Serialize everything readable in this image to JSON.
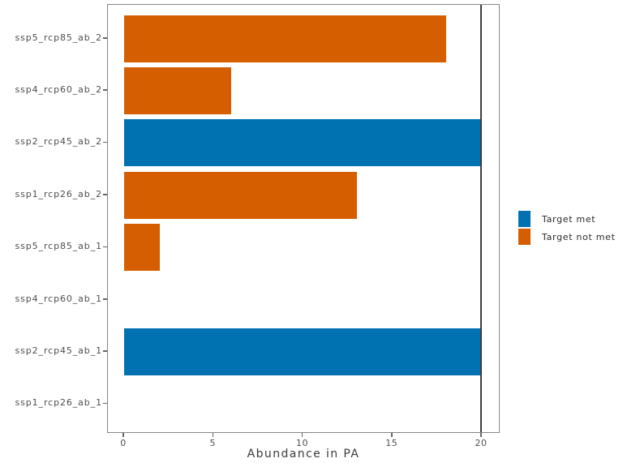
{
  "chart_data": {
    "type": "bar",
    "orientation": "horizontal",
    "title": "",
    "xlabel": "Abundance in PA",
    "ylabel": "",
    "xlim": [
      0,
      20
    ],
    "xticks": [
      0,
      5,
      10,
      15,
      20
    ],
    "grid": false,
    "reference_line_x": 20,
    "categories": [
      "ssp5_rcp85_ab_2",
      "ssp4_rcp60_ab_2",
      "ssp2_rcp45_ab_2",
      "ssp1_rcp26_ab_2",
      "ssp5_rcp85_ab_1",
      "ssp4_rcp60_ab_1",
      "ssp2_rcp45_ab_1",
      "ssp1_rcp26_ab_1"
    ],
    "values": [
      18,
      6,
      20,
      13,
      2,
      0,
      20,
      0
    ],
    "statuses": [
      "not_met",
      "not_met",
      "met",
      "not_met",
      "not_met",
      "none",
      "met",
      "none"
    ],
    "colors": {
      "met": "#0072B2",
      "not_met": "#D55E00"
    },
    "legend_position": "right",
    "legend": [
      {
        "key": "met",
        "label": "Target met"
      },
      {
        "key": "not_met",
        "label": "Target not met"
      }
    ]
  },
  "style": {
    "panel_border": "#858585",
    "reference_line": "#3d3d3d",
    "tick_color": "#666666",
    "text_color": "#4d4d4d",
    "background": "#ffffff"
  }
}
